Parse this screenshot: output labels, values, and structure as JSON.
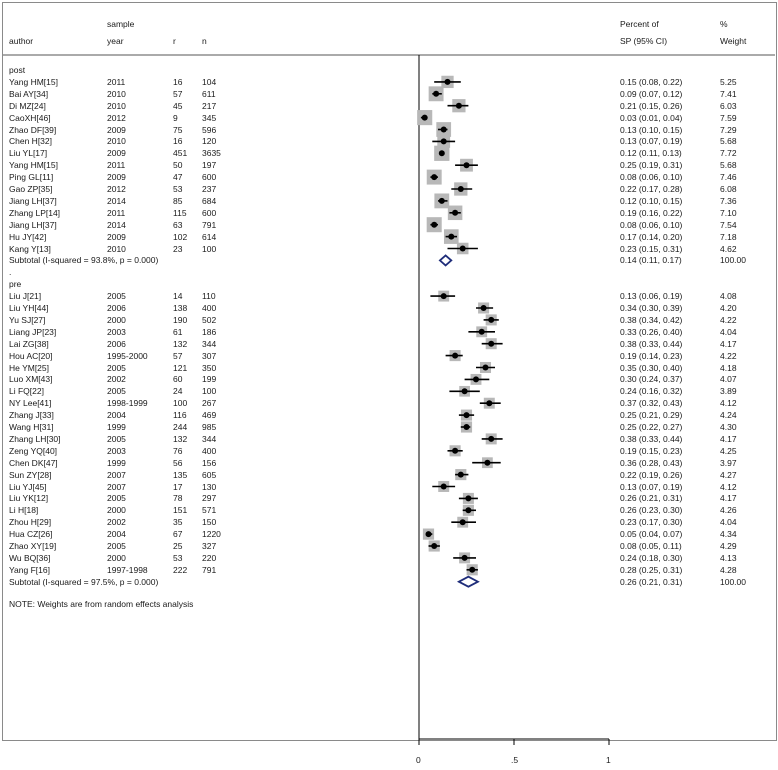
{
  "chart_data": {
    "type": "forest",
    "headers": {
      "author": "author",
      "year_top": "sample",
      "year": "year",
      "r": "r",
      "n": "n",
      "effect_top": "Percent of",
      "effect": "SP (95% CI)",
      "weight_top": "%",
      "weight": "Weight"
    },
    "groups": [
      {
        "label": "post",
        "studies": [
          {
            "author": "Yang HM[15]",
            "year": "2011",
            "r": "16",
            "n": "104",
            "est": 0.15,
            "lo": 0.08,
            "hi": 0.22,
            "ci_text": "0.15 (0.08, 0.22)",
            "weight": "5.25"
          },
          {
            "author": "Bai AY[34]",
            "year": "2010",
            "r": "57",
            "n": "611",
            "est": 0.09,
            "lo": 0.07,
            "hi": 0.12,
            "ci_text": "0.09 (0.07, 0.12)",
            "weight": "7.41"
          },
          {
            "author": "Di MZ[24]",
            "year": "2010",
            "r": "45",
            "n": "217",
            "est": 0.21,
            "lo": 0.15,
            "hi": 0.26,
            "ci_text": "0.21 (0.15, 0.26)",
            "weight": "6.03"
          },
          {
            "author": "CaoXH[46]",
            "year": "2012",
            "r": "9",
            "n": "345",
            "est": 0.03,
            "lo": 0.01,
            "hi": 0.04,
            "ci_text": "0.03 (0.01, 0.04)",
            "weight": "7.59"
          },
          {
            "author": "Zhao DF[39]",
            "year": "2009",
            "r": "75",
            "n": "596",
            "est": 0.13,
            "lo": 0.1,
            "hi": 0.15,
            "ci_text": "0.13 (0.10, 0.15)",
            "weight": "7.29"
          },
          {
            "author": "Chen H[32]",
            "year": "2010",
            "r": "16",
            "n": "120",
            "est": 0.13,
            "lo": 0.07,
            "hi": 0.19,
            "ci_text": "0.13 (0.07, 0.19)",
            "weight": "5.68"
          },
          {
            "author": "Liu YL[17]",
            "year": "2009",
            "r": "451",
            "n": "3635",
            "est": 0.12,
            "lo": 0.11,
            "hi": 0.13,
            "ci_text": "0.12 (0.11, 0.13)",
            "weight": "7.72"
          },
          {
            "author": "Yang HM[15]",
            "year": "2011",
            "r": "50",
            "n": "197",
            "est": 0.25,
            "lo": 0.19,
            "hi": 0.31,
            "ci_text": "0.25 (0.19, 0.31)",
            "weight": "5.68"
          },
          {
            "author": "Ping GL[11]",
            "year": "2009",
            "r": "47",
            "n": "600",
            "est": 0.08,
            "lo": 0.06,
            "hi": 0.1,
            "ci_text": "0.08 (0.06, 0.10)",
            "weight": "7.46"
          },
          {
            "author": "Gao ZP[35]",
            "year": "2012",
            "r": "53",
            "n": "237",
            "est": 0.22,
            "lo": 0.17,
            "hi": 0.28,
            "ci_text": "0.22 (0.17, 0.28)",
            "weight": "6.08"
          },
          {
            "author": "Jiang LH[37]",
            "year": "2014",
            "r": "85",
            "n": "684",
            "est": 0.12,
            "lo": 0.1,
            "hi": 0.15,
            "ci_text": "0.12 (0.10, 0.15)",
            "weight": "7.36"
          },
          {
            "author": "Zhang LP[14]",
            "year": "2011",
            "r": "115",
            "n": "600",
            "est": 0.19,
            "lo": 0.16,
            "hi": 0.22,
            "ci_text": "0.19 (0.16, 0.22)",
            "weight": "7.10"
          },
          {
            "author": "Jiang LH[37]",
            "year": "2014",
            "r": "63",
            "n": "791",
            "est": 0.08,
            "lo": 0.06,
            "hi": 0.1,
            "ci_text": "0.08 (0.06, 0.10)",
            "weight": "7.54"
          },
          {
            "author": "Hu JY[42]",
            "year": "2009",
            "r": "102",
            "n": "614",
            "est": 0.17,
            "lo": 0.14,
            "hi": 0.2,
            "ci_text": "0.17 (0.14, 0.20)",
            "weight": "7.18"
          },
          {
            "author": "Kang Y[13]",
            "year": "2010",
            "r": "23",
            "n": "100",
            "est": 0.23,
            "lo": 0.15,
            "hi": 0.31,
            "ci_text": "0.23 (0.15, 0.31)",
            "weight": "4.62"
          }
        ],
        "subtotal": {
          "label": "Subtotal  (I-squared = 93.8%, p = 0.000)",
          "est": 0.14,
          "lo": 0.11,
          "hi": 0.17,
          "ci_text": "0.14 (0.11, 0.17)",
          "weight": "100.00"
        }
      },
      {
        "label": "pre",
        "studies": [
          {
            "author": "Liu J[21]",
            "year": "2005",
            "r": "14",
            "n": "110",
            "est": 0.13,
            "lo": 0.06,
            "hi": 0.19,
            "ci_text": "0.13 (0.06, 0.19)",
            "weight": "4.08"
          },
          {
            "author": "Liu YH[44]",
            "year": "2006",
            "r": "138",
            "n": "400",
            "est": 0.34,
            "lo": 0.3,
            "hi": 0.39,
            "ci_text": "0.34 (0.30, 0.39)",
            "weight": "4.20"
          },
          {
            "author": "Yu SJ[27]",
            "year": "2000",
            "r": "190",
            "n": "502",
            "est": 0.38,
            "lo": 0.34,
            "hi": 0.42,
            "ci_text": "0.38 (0.34, 0.42)",
            "weight": "4.22"
          },
          {
            "author": "Liang JP[23]",
            "year": "2003",
            "r": "61",
            "n": "186",
            "est": 0.33,
            "lo": 0.26,
            "hi": 0.4,
            "ci_text": "0.33 (0.26, 0.40)",
            "weight": "4.04"
          },
          {
            "author": "Lai ZG[38]",
            "year": "2006",
            "r": "132",
            "n": "344",
            "est": 0.38,
            "lo": 0.33,
            "hi": 0.44,
            "ci_text": "0.38 (0.33, 0.44)",
            "weight": "4.17"
          },
          {
            "author": "Hou AC[20]",
            "year": "1995-2000",
            "r": "57",
            "n": "307",
            "est": 0.19,
            "lo": 0.14,
            "hi": 0.23,
            "ci_text": "0.19 (0.14, 0.23)",
            "weight": "4.22"
          },
          {
            "author": "He YM[25]",
            "year": "2005",
            "r": "121",
            "n": "350",
            "est": 0.35,
            "lo": 0.3,
            "hi": 0.4,
            "ci_text": "0.35 (0.30, 0.40)",
            "weight": "4.18"
          },
          {
            "author": "Luo XM[43]",
            "year": "2002",
            "r": "60",
            "n": "199",
            "est": 0.3,
            "lo": 0.24,
            "hi": 0.37,
            "ci_text": "0.30 (0.24, 0.37)",
            "weight": "4.07"
          },
          {
            "author": "Li FQ[22]",
            "year": "2005",
            "r": "24",
            "n": "100",
            "est": 0.24,
            "lo": 0.16,
            "hi": 0.32,
            "ci_text": "0.24 (0.16, 0.32)",
            "weight": "3.89"
          },
          {
            "author": "NY Lee[41]",
            "year": "1998-1999",
            "r": "100",
            "n": "267",
            "est": 0.37,
            "lo": 0.32,
            "hi": 0.43,
            "ci_text": "0.37 (0.32, 0.43)",
            "weight": "4.12"
          },
          {
            "author": "Zhang J[33]",
            "year": "2004",
            "r": "116",
            "n": "469",
            "est": 0.25,
            "lo": 0.21,
            "hi": 0.29,
            "ci_text": "0.25 (0.21, 0.29)",
            "weight": "4.24"
          },
          {
            "author": "Wang H[31]",
            "year": "1999",
            "r": "244",
            "n": "985",
            "est": 0.25,
            "lo": 0.22,
            "hi": 0.27,
            "ci_text": "0.25 (0.22, 0.27)",
            "weight": "4.30"
          },
          {
            "author": "Zhang LH[30]",
            "year": "2005",
            "r": "132",
            "n": "344",
            "est": 0.38,
            "lo": 0.33,
            "hi": 0.44,
            "ci_text": "0.38 (0.33, 0.44)",
            "weight": "4.17"
          },
          {
            "author": "Zeng YQ[40]",
            "year": "2003",
            "r": "76",
            "n": "400",
            "est": 0.19,
            "lo": 0.15,
            "hi": 0.23,
            "ci_text": "0.19 (0.15, 0.23)",
            "weight": "4.25"
          },
          {
            "author": "Chen DK[47]",
            "year": "1999",
            "r": "56",
            "n": "156",
            "est": 0.36,
            "lo": 0.28,
            "hi": 0.43,
            "ci_text": "0.36 (0.28, 0.43)",
            "weight": "3.97"
          },
          {
            "author": "Sun ZY[28]",
            "year": "2007",
            "r": "135",
            "n": "605",
            "est": 0.22,
            "lo": 0.19,
            "hi": 0.26,
            "ci_text": "0.22 (0.19, 0.26)",
            "weight": "4.27"
          },
          {
            "author": "Liu YJ[45]",
            "year": "2007",
            "r": "17",
            "n": "130",
            "est": 0.13,
            "lo": 0.07,
            "hi": 0.19,
            "ci_text": "0.13 (0.07, 0.19)",
            "weight": "4.12"
          },
          {
            "author": "Liu YK[12]",
            "year": "2005",
            "r": "78",
            "n": "297",
            "est": 0.26,
            "lo": 0.21,
            "hi": 0.31,
            "ci_text": "0.26 (0.21, 0.31)",
            "weight": "4.17"
          },
          {
            "author": "Li H[18]",
            "year": "2000",
            "r": "151",
            "n": "571",
            "est": 0.26,
            "lo": 0.23,
            "hi": 0.3,
            "ci_text": "0.26 (0.23, 0.30)",
            "weight": "4.26"
          },
          {
            "author": "Zhou H[29]",
            "year": "2002",
            "r": "35",
            "n": "150",
            "est": 0.23,
            "lo": 0.17,
            "hi": 0.3,
            "ci_text": "0.23 (0.17, 0.30)",
            "weight": "4.04"
          },
          {
            "author": "Hua CZ[26]",
            "year": "2004",
            "r": "67",
            "n": "1220",
            "est": 0.05,
            "lo": 0.04,
            "hi": 0.07,
            "ci_text": "0.05 (0.04, 0.07)",
            "weight": "4.34"
          },
          {
            "author": "Zhao XY[19]",
            "year": "2005",
            "r": "25",
            "n": "327",
            "est": 0.08,
            "lo": 0.05,
            "hi": 0.11,
            "ci_text": "0.08 (0.05, 0.11)",
            "weight": "4.29"
          },
          {
            "author": "Wu BQ[36]",
            "year": "2000",
            "r": "53",
            "n": "220",
            "est": 0.24,
            "lo": 0.18,
            "hi": 0.3,
            "ci_text": "0.24 (0.18, 0.30)",
            "weight": "4.13"
          },
          {
            "author": "Yang F[16]",
            "year": "1997-1998",
            "r": "222",
            "n": "791",
            "est": 0.28,
            "lo": 0.25,
            "hi": 0.31,
            "ci_text": "0.28 (0.25, 0.31)",
            "weight": "4.28"
          }
        ],
        "subtotal": {
          "label": "Subtotal  (I-squared = 97.5%, p = 0.000)",
          "est": 0.26,
          "lo": 0.21,
          "hi": 0.31,
          "ci_text": "0.26 (0.21, 0.31)",
          "weight": "100.00"
        }
      }
    ],
    "separator": ".",
    "note": "NOTE: Weights are from random effects analysis",
    "x_ticks": [
      {
        "value": 0,
        "label": "0"
      },
      {
        "value": 0.5,
        "label": ".5"
      },
      {
        "value": 1,
        "label": "1"
      }
    ],
    "xlim": [
      0,
      1
    ],
    "colors": {
      "point": "#000000",
      "box": "#b8b8b8",
      "diamond": "#1f2d7a",
      "frame": "#8a8a8a"
    }
  }
}
